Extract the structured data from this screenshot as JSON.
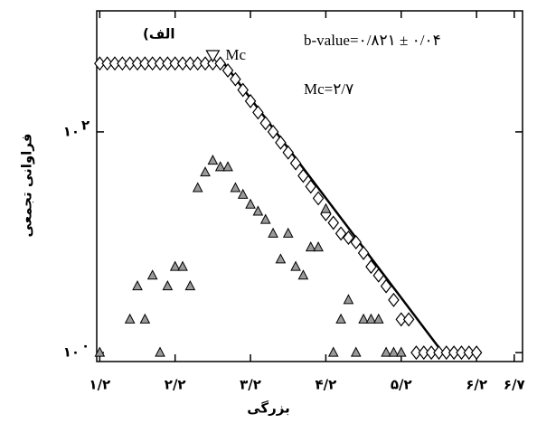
{
  "chart_data": {
    "type": "scatter",
    "x_label": "بزرگی",
    "y_label": "فراوانی تجمعی",
    "panel_label": "الف)",
    "annotation_b": "b-value=۰/۸۲۱ ± ۰/۰۴",
    "annotation_mc": "Mc=۲/۷",
    "mc": {
      "value": 2.7,
      "label": "Mc"
    },
    "xlim": [
      1.16,
      6.81
    ],
    "ylim": [
      0.83,
      1250
    ],
    "log_y": true,
    "xticks": [
      {
        "value": 1.2,
        "label": "۱/۲"
      },
      {
        "value": 2.2,
        "label": "۲/۲"
      },
      {
        "value": 3.2,
        "label": "۳/۲"
      },
      {
        "value": 4.2,
        "label": "۴/۲"
      },
      {
        "value": 5.2,
        "label": "۵/۲"
      },
      {
        "value": 6.2,
        "label": "۶/۲"
      },
      {
        "value": 6.7,
        "label": "۶/۷"
      }
    ],
    "yticks": [
      {
        "value": 1,
        "label": "۱۰",
        "exponent": "۰"
      },
      {
        "value": 100,
        "label": "۱۰",
        "exponent": "۲"
      }
    ],
    "series": [
      {
        "marker": "diamond",
        "color": "#ffffff",
        "x": [
          1.2,
          1.3,
          1.4,
          1.5,
          1.6,
          1.7,
          1.8,
          1.9,
          2.0,
          2.1,
          2.2,
          2.3,
          2.4,
          2.5,
          2.6,
          2.7,
          2.8,
          2.9,
          3.0,
          3.1,
          3.2,
          3.3,
          3.4,
          3.5,
          3.6,
          3.7,
          3.8,
          3.9,
          4.0,
          4.1,
          4.2,
          4.3,
          4.4,
          4.5,
          4.6,
          4.7,
          4.8,
          4.9,
          5.0,
          5.1,
          5.2,
          5.3,
          5.4,
          5.5,
          5.6,
          5.7,
          5.8,
          5.9,
          6.0,
          6.1,
          6.2
        ],
        "values": [
          417,
          417,
          417,
          417,
          417,
          417,
          417,
          417,
          417,
          417,
          417,
          417,
          417,
          417,
          417,
          417,
          417,
          360,
          300,
          240,
          190,
          150,
          120,
          100,
          80,
          65,
          52,
          40,
          32,
          25,
          18,
          15,
          12,
          11,
          10,
          8,
          6,
          5,
          4,
          3,
          2,
          2,
          1,
          1,
          1,
          1,
          1,
          1,
          1,
          1,
          1
        ]
      },
      {
        "marker": "triangle",
        "color": "#9a9a9a",
        "x": [
          1.2,
          1.6,
          1.7,
          1.8,
          1.9,
          2.0,
          2.1,
          2.2,
          2.3,
          2.4,
          2.5,
          2.6,
          2.7,
          2.8,
          2.9,
          3.0,
          3.1,
          3.2,
          3.3,
          3.4,
          3.5,
          3.6,
          3.7,
          3.8,
          3.9,
          4.0,
          4.1,
          4.2,
          4.3,
          4.4,
          4.5,
          4.6,
          4.7,
          4.8,
          4.9,
          5.0,
          5.1,
          5.2
        ],
        "values": [
          1,
          2,
          4,
          2,
          5,
          1,
          4,
          6,
          6,
          4,
          31,
          43,
          55,
          48,
          48,
          31,
          27,
          22,
          19,
          16,
          12,
          7,
          12,
          6,
          5,
          9,
          9,
          20,
          1,
          2,
          3,
          1,
          2,
          2,
          2,
          1,
          1,
          1
        ]
      }
    ],
    "fit_line": {
      "color": "#000000",
      "x": [
        2.85,
        5.75
      ],
      "values": [
        417,
        1
      ]
    }
  }
}
